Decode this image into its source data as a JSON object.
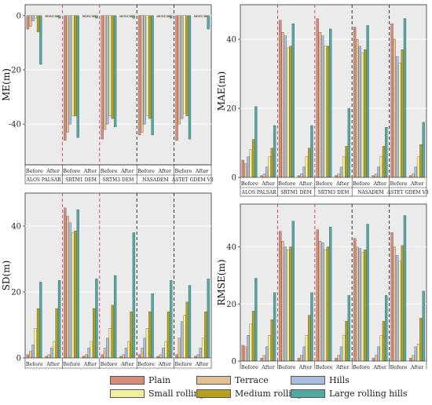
{
  "legend": {
    "items": [
      {
        "label": "Plain",
        "color": "#d98b78"
      },
      {
        "label": "Terrace",
        "color": "#e5c095"
      },
      {
        "label": "Hills",
        "color": "#a6bde0"
      },
      {
        "label": "Small rolling hills",
        "color": "#f1ef9a"
      },
      {
        "label": "Medium rolling hills",
        "color": "#b79e1d"
      },
      {
        "label": "Large rolling hills",
        "color": "#4fa9a3"
      }
    ]
  },
  "chart_data": [
    {
      "type": "bar",
      "ylabel": "ME(m)",
      "ylim": [
        -55,
        4
      ],
      "yticks": [
        0,
        -20,
        -40
      ],
      "inverted": true,
      "dems": [
        "ALOS PALSAR",
        "SRTM1 DEM",
        "SRTM3 DEM",
        "NASADEM",
        "ASTET GDEM V3"
      ],
      "phases": [
        "Before",
        "After"
      ],
      "series": [
        {
          "name": "Plain",
          "values": [
            -5,
            -0.5,
            -46,
            -0.5,
            -45.5,
            -0.5,
            -44,
            -0.5,
            -46,
            -0.5
          ]
        },
        {
          "name": "Terrace",
          "values": [
            -4,
            -0.5,
            -43,
            -0.5,
            -42,
            -0.5,
            -43,
            -0.5,
            -40,
            -0.5
          ]
        },
        {
          "name": "Hills",
          "values": [
            -2,
            -0.5,
            -40,
            -0.5,
            -40,
            -0.5,
            -40,
            -0.5,
            -38,
            -0.5
          ]
        },
        {
          "name": "Small rolling hills",
          "values": [
            -1,
            -0.5,
            -37,
            -0.5,
            -37,
            -0.5,
            -37,
            -0.5,
            -36,
            -0.5
          ]
        },
        {
          "name": "Medium rolling hills",
          "values": [
            -6,
            -0.5,
            -37,
            -0.5,
            -38,
            -0.5,
            -38,
            -0.5,
            -37,
            -0.5
          ]
        },
        {
          "name": "Large rolling hills",
          "values": [
            -18,
            -1,
            -45,
            -1,
            -41,
            -1,
            -44,
            -1,
            -45.5,
            -5
          ]
        }
      ]
    },
    {
      "type": "bar",
      "ylabel": "MAE(m)",
      "ylim": [
        0,
        50
      ],
      "yticks": [
        0,
        20,
        40
      ],
      "dems": [
        "ALOS PALSAR",
        "SRTM1 DEM",
        "SRTM3 DEM",
        "NASADEM",
        "ASTET GDEM V3"
      ],
      "phases": [
        "Before",
        "After"
      ],
      "series": [
        {
          "name": "Plain",
          "values": [
            5,
            0.5,
            45.5,
            0.5,
            46,
            0.5,
            43.5,
            0.5,
            44.5,
            0.5
          ]
        },
        {
          "name": "Terrace",
          "values": [
            4,
            1,
            42,
            1,
            42,
            1,
            40,
            1,
            40,
            1
          ]
        },
        {
          "name": "Hills",
          "values": [
            6,
            3,
            41,
            3,
            41,
            3,
            38,
            3,
            35,
            3
          ]
        },
        {
          "name": "Small rolling hills",
          "values": [
            8,
            6,
            37.5,
            6,
            38,
            6,
            36,
            6,
            33,
            6
          ]
        },
        {
          "name": "Medium rolling hills",
          "values": [
            11,
            8.5,
            38,
            8.5,
            38,
            9,
            37,
            9,
            37,
            9.5
          ]
        },
        {
          "name": "Large rolling hills",
          "values": [
            20.5,
            15,
            44.5,
            15,
            43,
            20,
            44,
            14.5,
            46,
            16
          ]
        }
      ]
    },
    {
      "type": "bar",
      "ylabel": "SD(m)",
      "ylim": [
        0,
        50
      ],
      "yticks": [
        0,
        20,
        40
      ],
      "dems": [
        "ALOS PALSAR",
        "SRTM1 DEM",
        "SRTM3 DEM",
        "NASADEM",
        "ASTET GDEM V3"
      ],
      "phases": [
        "Before",
        "After"
      ],
      "series": [
        {
          "name": "Plain",
          "values": [
            1,
            0.5,
            45.5,
            0.5,
            1,
            0.5,
            1,
            0.5,
            1,
            0.5
          ]
        },
        {
          "name": "Terrace",
          "values": [
            2,
            1,
            43,
            1,
            3,
            1,
            3,
            1,
            6,
            1
          ]
        },
        {
          "name": "Hills",
          "values": [
            4,
            3,
            41,
            3,
            6,
            3,
            6,
            3,
            11,
            3
          ]
        },
        {
          "name": "Small rolling hills",
          "values": [
            9,
            5,
            38,
            5,
            9,
            5,
            9,
            5,
            13,
            6
          ]
        },
        {
          "name": "Medium rolling hills",
          "values": [
            15,
            15,
            38.5,
            15,
            16,
            14,
            14,
            14,
            17,
            14
          ]
        },
        {
          "name": "Large rolling hills",
          "values": [
            23,
            23.5,
            45,
            24,
            25,
            38,
            19.5,
            23.5,
            22,
            24
          ]
        }
      ]
    },
    {
      "type": "bar",
      "ylabel": "RMSE(m)",
      "ylim": [
        0,
        55
      ],
      "yticks": [
        0,
        20,
        40
      ],
      "dems": [
        "ALOS PALSAR",
        "SRTM1 DEM",
        "SRTM3 DEM",
        "NASADEM",
        "ASTET GDEM V3"
      ],
      "phases": [
        "Before",
        "After"
      ],
      "series": [
        {
          "name": "Plain",
          "values": [
            5.5,
            1,
            45.5,
            1,
            46,
            1,
            43,
            1,
            45,
            1
          ]
        },
        {
          "name": "Terrace",
          "values": [
            5,
            2,
            42,
            2,
            42,
            2,
            40,
            2,
            40,
            2
          ]
        },
        {
          "name": "Hills",
          "values": [
            9,
            5,
            40,
            5,
            41.5,
            5,
            39.5,
            5,
            37,
            5
          ]
        },
        {
          "name": "Small rolling hills",
          "values": [
            13,
            9,
            39,
            9,
            39,
            9,
            38,
            9,
            35,
            6
          ]
        },
        {
          "name": "Medium rolling hills",
          "values": [
            17.5,
            14.5,
            40,
            16,
            40,
            14,
            39,
            14,
            40.5,
            15
          ]
        },
        {
          "name": "Large rolling hills",
          "values": [
            29,
            24,
            49,
            24,
            47,
            23,
            48,
            23,
            51,
            24.5
          ]
        }
      ]
    }
  ]
}
